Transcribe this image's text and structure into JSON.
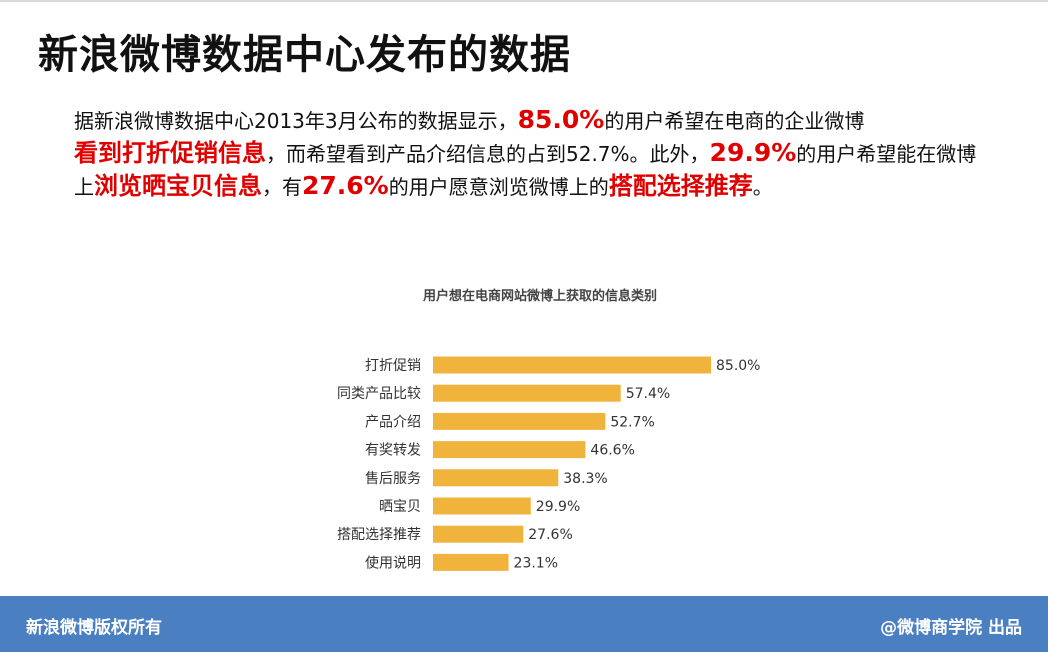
{
  "title": "新浪微博数据中心发布的数据",
  "paragraph": {
    "p1": "据新浪微博数据中心2013年3月公布的数据显示，",
    "h1": "85.0%",
    "p2": "的用户希望在电商的企业微博",
    "h2": "看到打折促销信息",
    "p3": "，而希望看到产品介绍信息的占到52.7%。此外，",
    "h3": "29.9%",
    "p4": "的用户希望能在微博上",
    "h4": "浏览晒宝贝信息",
    "p5": "，有",
    "h5": "27.6%",
    "p6": "的用户愿意浏览微博上的",
    "h6": "搭配选择推荐",
    "p7": "。"
  },
  "colors": {
    "highlight": "#e00000",
    "bar": "#f0b43c",
    "footer": "#4a7fc2"
  },
  "chart_data": {
    "type": "bar",
    "orientation": "horizontal",
    "title": "用户想在电商网站微博上获取的信息类别",
    "categories": [
      "打折促销",
      "同类产品比较",
      "产品介绍",
      "有奖转发",
      "售后服务",
      "晒宝贝",
      "搭配选择推荐",
      "使用说明"
    ],
    "values": [
      85.0,
      57.4,
      52.7,
      46.6,
      38.3,
      29.9,
      27.6,
      23.1
    ],
    "value_labels": [
      "85.0%",
      "57.4%",
      "52.7%",
      "46.6%",
      "38.3%",
      "29.9%",
      "27.6%",
      "23.1%"
    ],
    "xlim": [
      0,
      85
    ],
    "grid": false,
    "legend": "none"
  },
  "footer": {
    "left": "新浪微博版权所有",
    "right": "@微博商学院 出品"
  }
}
